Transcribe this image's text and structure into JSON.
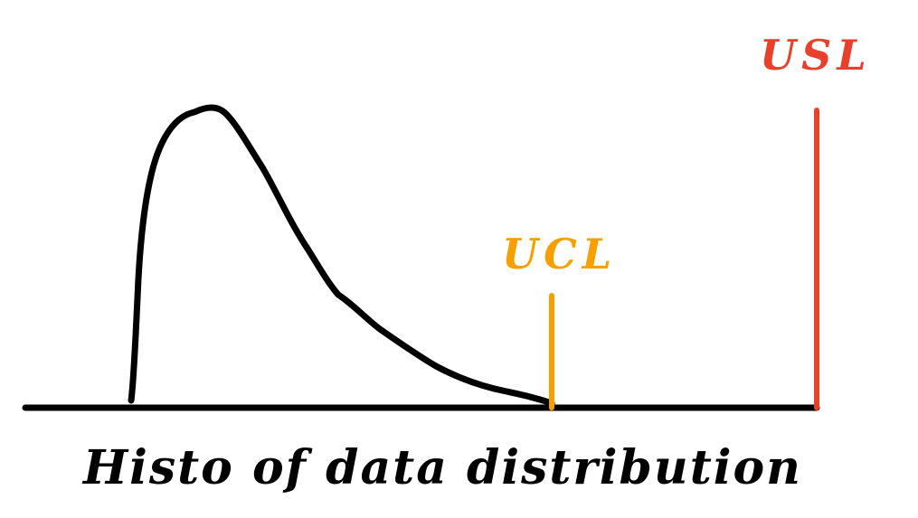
{
  "diagram": {
    "caption": "Histo of data distribution",
    "ucl_label": "UCL",
    "usl_label": "USL",
    "colors": {
      "curve": "#000000",
      "axis": "#000000",
      "ucl": "#F5A000",
      "usl": "#E8402A",
      "caption": "#000000"
    }
  }
}
